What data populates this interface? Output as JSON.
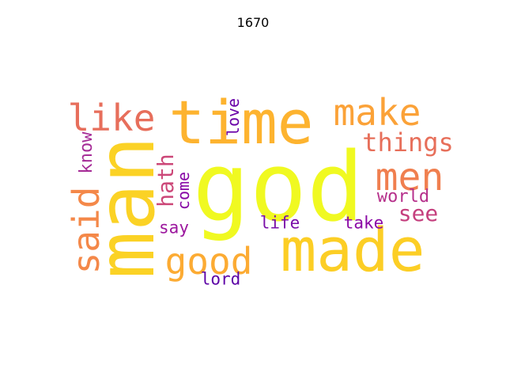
{
  "title": "1670",
  "words": [
    {
      "text": "god",
      "color": "#f0f921"
    },
    {
      "text": "man",
      "color": "#fbd225"
    },
    {
      "text": "made",
      "color": "#fcce25"
    },
    {
      "text": "time",
      "color": "#fdb32f"
    },
    {
      "text": "men",
      "color": "#f07f4f"
    },
    {
      "text": "make",
      "color": "#fba238"
    },
    {
      "text": "like",
      "color": "#e76e5b"
    },
    {
      "text": "said",
      "color": "#f48849"
    },
    {
      "text": "good",
      "color": "#fcab33"
    },
    {
      "text": "things",
      "color": "#e76f5a"
    },
    {
      "text": "see",
      "color": "#c5407e"
    },
    {
      "text": "hath",
      "color": "#cc4778"
    },
    {
      "text": "world",
      "color": "#b6308b"
    },
    {
      "text": "know",
      "color": "#a62d97"
    },
    {
      "text": "come",
      "color": "#8707a6"
    },
    {
      "text": "love",
      "color": "#6a00a8"
    },
    {
      "text": "say",
      "color": "#9c179e"
    },
    {
      "text": "life",
      "color": "#7a0ea8"
    },
    {
      "text": "take",
      "color": "#8b0aa5"
    },
    {
      "text": "lord",
      "color": "#5c01a6"
    }
  ]
}
